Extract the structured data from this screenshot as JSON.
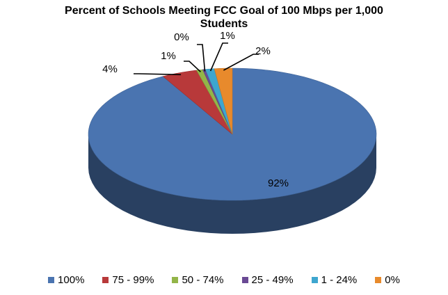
{
  "chart_data": {
    "type": "pie",
    "title_lines": [
      "Percent of Schools Meeting FCC Goal of 100 Mbps per 1,000",
      "Students"
    ],
    "style": "3d",
    "legend_position": "bottom",
    "slices": [
      {
        "name": "100%",
        "value": 92,
        "label": "92%",
        "color": "#4a74b0"
      },
      {
        "name": "75 - 99%",
        "value": 4,
        "label": "4%",
        "color": "#b8393a"
      },
      {
        "name": "50 - 74%",
        "value": 0.7,
        "label": "1%",
        "color": "#93b548"
      },
      {
        "name": "25 - 49%",
        "value": 0.3,
        "label": "0%",
        "color": "#6a4a94"
      },
      {
        "name": "1 - 24%",
        "value": 1,
        "label": "1%",
        "color": "#3ea6cf"
      },
      {
        "name": "0%",
        "value": 2,
        "label": "2%",
        "color": "#e88a2c"
      }
    ]
  }
}
